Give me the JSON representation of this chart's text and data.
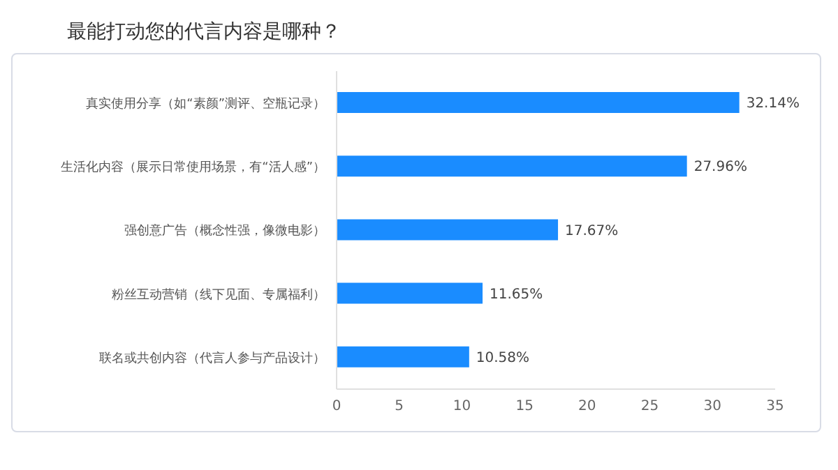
{
  "chart_data": {
    "type": "bar",
    "orientation": "horizontal",
    "title": "最能打动您的代言内容是哪种？",
    "categories": [
      "真实使用分享（如“素颜”测评、空瓶记录）",
      "生活化内容（展示日常使用场景，有“活人感”）",
      "强创意广告（概念性强，像微电影）",
      "粉丝互动营销（线下见面、专属福利）",
      "联名或共创内容（代言人参与产品设计）"
    ],
    "values": [
      32.14,
      27.96,
      17.67,
      11.65,
      10.58
    ],
    "value_labels": [
      "32.14%",
      "27.96%",
      "17.67%",
      "11.65%",
      "10.58%"
    ],
    "color": "#1a8cff",
    "xlim": [
      0,
      35
    ],
    "xticks": [
      0,
      5,
      10,
      15,
      20,
      25,
      30,
      35
    ],
    "grid": false,
    "legend": false
  }
}
